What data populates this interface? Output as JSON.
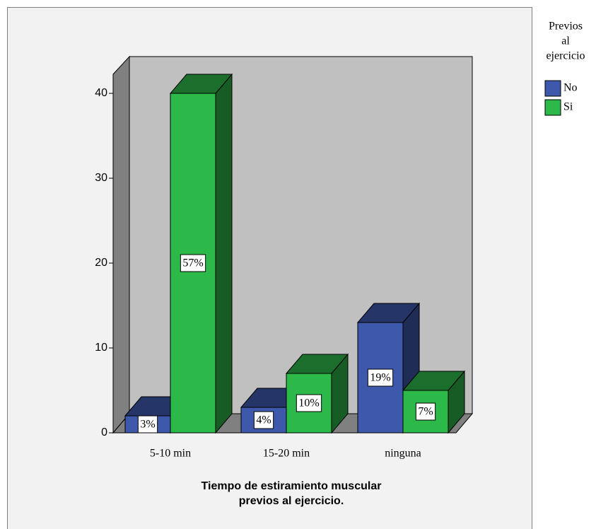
{
  "chart_data": {
    "type": "bar3d",
    "xlabel": [
      "Tiempo de estiramiento muscular",
      "previos al ejercicio."
    ],
    "legend_title": [
      "Previos",
      "al",
      "ejercicio"
    ],
    "categories": [
      "5-10 min",
      "15-20 min",
      "ninguna"
    ],
    "series": [
      {
        "name": "No",
        "color": "#3e58ac",
        "values": [
          2,
          3,
          13
        ],
        "value_labels": [
          "3%",
          "4%",
          "19%"
        ]
      },
      {
        "name": "Si",
        "color": "#2db84a",
        "values": [
          40,
          7,
          5
        ],
        "value_labels": [
          "57%",
          "10%",
          "7%"
        ]
      }
    ],
    "ylim": [
      0,
      42
    ],
    "yticks": [
      0,
      10,
      20,
      30,
      40
    ],
    "legend": "right"
  }
}
